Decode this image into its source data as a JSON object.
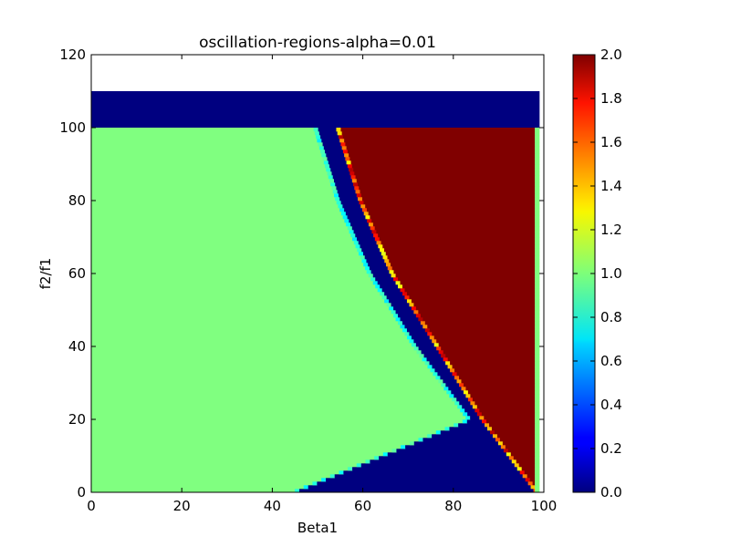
{
  "chart_data": {
    "type": "heatmap",
    "title": "oscillation-regions-alpha=0.01",
    "xlabel": "Beta1",
    "ylabel": "f2/f1",
    "xlim": [
      0,
      100
    ],
    "ylim": [
      0,
      120
    ],
    "x_ticks": [
      "0",
      "20",
      "40",
      "60",
      "80",
      "100"
    ],
    "y_ticks": [
      "0",
      "20",
      "40",
      "60",
      "80",
      "100",
      "120"
    ],
    "colormap": "jet",
    "colorbar": {
      "range": [
        0.0,
        2.0
      ],
      "ticks": [
        "0.0",
        "0.2",
        "0.4",
        "0.6",
        "0.8",
        "1.0",
        "1.2",
        "1.4",
        "1.6",
        "1.8",
        "2.0"
      ]
    },
    "grid": false,
    "data_extent": {
      "x": [
        0,
        99
      ],
      "y": [
        0,
        110
      ]
    },
    "regions": [
      {
        "description": "top band",
        "f2f1": [
          100,
          110
        ],
        "value": 0.0
      },
      {
        "description": "stable region",
        "value": 1.0
      },
      {
        "description": "boundary band",
        "value": 0.0
      },
      {
        "description": "oscillation region",
        "value": 2.0
      }
    ],
    "boundary_curve": {
      "inner_edge": [
        [
          0,
          45
        ],
        [
          20,
          84
        ],
        [
          40,
          72
        ],
        [
          60,
          62
        ],
        [
          80,
          55
        ],
        [
          100,
          50
        ]
      ],
      "outer_edge": [
        [
          0,
          98
        ],
        [
          20,
          86
        ],
        [
          40,
          76
        ],
        [
          60,
          66
        ],
        [
          80,
          59
        ],
        [
          100,
          54
        ]
      ],
      "note_axes": "pairs are [f2/f1, Beta1]"
    }
  }
}
